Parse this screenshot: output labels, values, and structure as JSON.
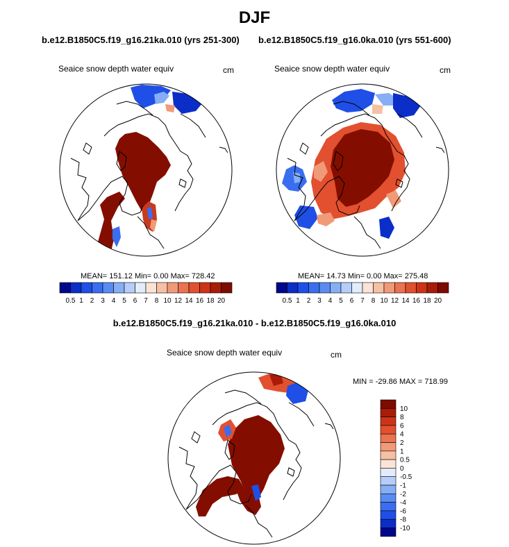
{
  "title": "DJF",
  "left_panel": {
    "case_title": "b.e12.B1850C5.f19_g16.21ka.010 (yrs 251-300)",
    "variable": "Seaice snow depth water equiv",
    "units": "cm",
    "stats": "MEAN= 151.12  Min=   0.00  Max= 728.42"
  },
  "right_panel": {
    "case_title": "b.e12.B1850C5.f19_g16.0ka.010 (yrs 551-600)",
    "variable": "Seaice snow depth water equiv",
    "units": "cm",
    "stats": "MEAN=  14.73  Min=   0.00  Max= 275.48"
  },
  "diff_panel": {
    "case_title": "b.e12.B1850C5.f19_g16.21ka.010 - b.e12.B1850C5.f19_g16.0ka.010",
    "variable": "Seaice snow depth water equiv",
    "units": "cm",
    "stats": "MIN = -29.86 MAX = 718.99"
  },
  "chart_data": [
    {
      "type": "heatmap",
      "projection": "north-polar-stereographic",
      "title": "b.e12.B1850C5.f19_g16.21ka.010 (yrs 251-300)",
      "variable": "Seaice snow depth water equiv",
      "units": "cm",
      "mean": 151.12,
      "min": 0.0,
      "max": 728.42,
      "colorbar": {
        "orientation": "horizontal",
        "levels": [
          0.5,
          1,
          2,
          3,
          4,
          5,
          6,
          7,
          8,
          10,
          12,
          14,
          16,
          18,
          20
        ],
        "labels": [
          "0.5",
          "1",
          "2",
          "3",
          "4",
          "5",
          "6",
          "7",
          "8",
          "10",
          "12",
          "14",
          "16",
          "18",
          "20"
        ],
        "colors": [
          "#00078c",
          "#0b2ec8",
          "#1f4fe6",
          "#3a6ef0",
          "#5a8bf2",
          "#86aef5",
          "#b5cdf8",
          "#e2ecfb",
          "#fbe4d6",
          "#f6c0a4",
          "#f19a78",
          "#ea7350",
          "#e2502f",
          "#cd3417",
          "#a81c08",
          "#7d0b00"
        ]
      }
    },
    {
      "type": "heatmap",
      "projection": "north-polar-stereographic",
      "title": "b.e12.B1850C5.f19_g16.0ka.010 (yrs 551-600)",
      "variable": "Seaice snow depth water equiv",
      "units": "cm",
      "mean": 14.73,
      "min": 0.0,
      "max": 275.48,
      "colorbar": {
        "orientation": "horizontal",
        "levels": [
          0.5,
          1,
          2,
          3,
          4,
          5,
          6,
          7,
          8,
          10,
          12,
          14,
          16,
          18,
          20
        ],
        "labels": [
          "0.5",
          "1",
          "2",
          "3",
          "4",
          "5",
          "6",
          "7",
          "8",
          "10",
          "12",
          "14",
          "16",
          "18",
          "20"
        ],
        "colors": [
          "#00078c",
          "#0b2ec8",
          "#1f4fe6",
          "#3a6ef0",
          "#5a8bf2",
          "#86aef5",
          "#b5cdf8",
          "#e2ecfb",
          "#fbe4d6",
          "#f6c0a4",
          "#f19a78",
          "#ea7350",
          "#e2502f",
          "#cd3417",
          "#a81c08",
          "#7d0b00"
        ]
      }
    },
    {
      "type": "heatmap",
      "projection": "north-polar-stereographic",
      "title": "b.e12.B1850C5.f19_g16.21ka.010 - b.e12.B1850C5.f19_g16.0ka.010",
      "variable": "Seaice snow depth water equiv",
      "units": "cm",
      "min": -29.86,
      "max": 718.99,
      "colorbar": {
        "orientation": "vertical",
        "levels_top_to_bottom": [
          10,
          8,
          6,
          4,
          2,
          1,
          0.5,
          0,
          -0.5,
          -1,
          -2,
          -4,
          -6,
          -8,
          -10
        ],
        "labels_top_to_bottom": [
          "10",
          "8",
          "6",
          "4",
          "2",
          "1",
          "0.5",
          "0",
          "-0.5",
          "-1",
          "-2",
          "-4",
          "-6",
          "-8",
          "-10"
        ],
        "colors_top_to_bottom": [
          "#7d0b00",
          "#a81c08",
          "#cd3417",
          "#e2502f",
          "#ea7350",
          "#f19a78",
          "#f6c0a4",
          "#fbe4d6",
          "#e2ecfb",
          "#b5cdf8",
          "#86aef5",
          "#5a8bf2",
          "#3a6ef0",
          "#1f4fe6",
          "#0b2ec8",
          "#00078c"
        ]
      }
    }
  ]
}
